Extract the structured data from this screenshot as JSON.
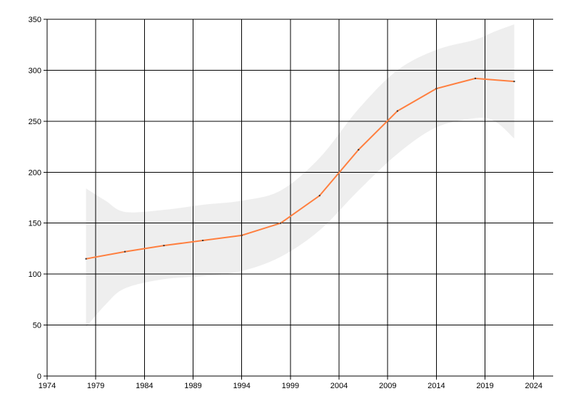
{
  "chart_data": {
    "type": "line",
    "title": "",
    "xlabel": "",
    "ylabel": "",
    "xlim": [
      1974,
      2026
    ],
    "ylim": [
      0,
      350
    ],
    "x_ticks": [
      1974,
      1979,
      1984,
      1989,
      1994,
      1999,
      2004,
      2009,
      2014,
      2019,
      2024
    ],
    "y_ticks": [
      0,
      50,
      100,
      150,
      200,
      250,
      300,
      350
    ],
    "grid": true,
    "legend": "none",
    "series": [
      {
        "x": [
          1978,
          1982,
          1986,
          1990,
          1994,
          1998,
          2002,
          2006,
          2010,
          2014,
          2018,
          2022
        ],
        "values": [
          115,
          122,
          128,
          133,
          138,
          150,
          177,
          222,
          260,
          282,
          292,
          289
        ],
        "color": "#ff7f3f"
      }
    ],
    "band": {
      "x": [
        1978,
        1980,
        1982,
        1986,
        1990,
        1994,
        1998,
        2002,
        2006,
        2010,
        2014,
        2018,
        2020,
        2022
      ],
      "upper": [
        184,
        172,
        161,
        163,
        168,
        172,
        182,
        214,
        262,
        300,
        320,
        330,
        338,
        345
      ],
      "lower": [
        48,
        70,
        86,
        95,
        98,
        103,
        117,
        143,
        182,
        218,
        244,
        253,
        250,
        233
      ],
      "color": "#eeeeee"
    }
  }
}
